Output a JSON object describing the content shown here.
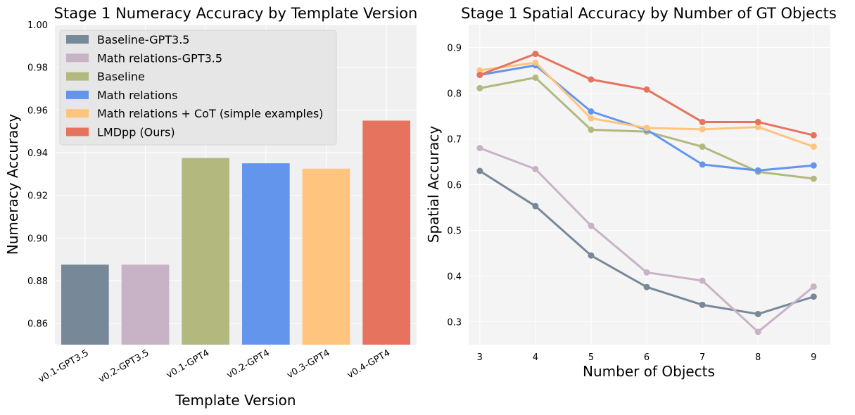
{
  "chart_data": [
    {
      "type": "bar",
      "title": "Stage 1 Numeracy Accuracy by Template Version",
      "xlabel": "Template Version",
      "ylabel": "Numeracy Accuracy",
      "ylim": [
        0.85,
        1.0
      ],
      "yticks": [
        "0.86",
        "0.88",
        "0.90",
        "0.92",
        "0.94",
        "0.96",
        "0.98",
        "1.00"
      ],
      "categories": [
        "v0.1-GPT3.5",
        "v0.2-GPT3.5",
        "v0.1-GPT4",
        "v0.2-GPT4",
        "v0.3-GPT4",
        "v0.4-GPT4"
      ],
      "values": [
        0.8875,
        0.8875,
        0.9375,
        0.935,
        0.9325,
        0.955
      ],
      "colors": [
        "#778899",
        "#C8B2C6",
        "#B2B87E",
        "#6495ED",
        "#FFC47E",
        "#E5735E"
      ],
      "legend": {
        "placement": "upper-left",
        "entries": [
          {
            "label": "Baseline-GPT3.5",
            "color": "#778899"
          },
          {
            "label": "Math relations-GPT3.5",
            "color": "#C8B2C6"
          },
          {
            "label": "Baseline",
            "color": "#B2B87E"
          },
          {
            "label": "Math relations",
            "color": "#6495ED"
          },
          {
            "label": "Math relations + CoT (simple examples)",
            "color": "#FFC47E"
          },
          {
            "label": "LMDpp (Ours)",
            "color": "#E5735E"
          }
        ]
      },
      "grid": true
    },
    {
      "type": "line",
      "title": "Stage 1 Spatial Accuracy by Number of GT Objects",
      "xlabel": "Number of Objects",
      "ylabel": "Spatial Accuracy",
      "x": [
        3,
        4,
        5,
        6,
        7,
        8,
        9
      ],
      "xlim": [
        2.8,
        9.3
      ],
      "ylim": [
        0.25,
        0.95
      ],
      "yticks": [
        "0.3",
        "0.4",
        "0.5",
        "0.6",
        "0.7",
        "0.8",
        "0.9"
      ],
      "series": [
        {
          "color": "#778899",
          "values": [
            0.63,
            0.553,
            0.445,
            0.376,
            0.337,
            0.317,
            0.355
          ]
        },
        {
          "color": "#C8B2C6",
          "values": [
            0.68,
            0.634,
            0.51,
            0.408,
            0.39,
            0.278,
            0.377
          ]
        },
        {
          "color": "#B2B87E",
          "values": [
            0.811,
            0.834,
            0.72,
            0.716,
            0.683,
            0.628,
            0.613
          ]
        },
        {
          "color": "#6495ED",
          "values": [
            0.84,
            0.861,
            0.76,
            0.72,
            0.644,
            0.631,
            0.642
          ]
        },
        {
          "color": "#FFC47E",
          "values": [
            0.85,
            0.867,
            0.745,
            0.724,
            0.721,
            0.726,
            0.683
          ]
        },
        {
          "color": "#E5735E",
          "values": [
            0.84,
            0.886,
            0.83,
            0.808,
            0.737,
            0.737,
            0.708
          ]
        }
      ],
      "grid": true
    }
  ]
}
